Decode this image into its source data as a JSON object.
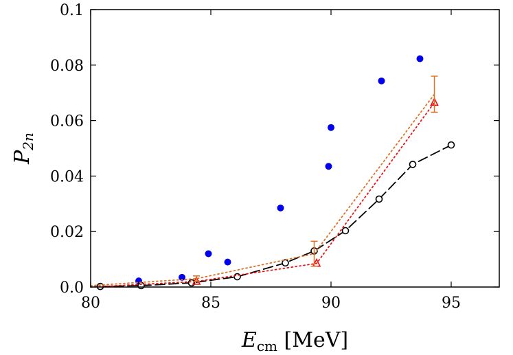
{
  "chart_data": {
    "type": "scatter",
    "xlabel": {
      "main": "E",
      "sub": "cm",
      "unit": " [MeV]"
    },
    "ylabel": {
      "main": "P",
      "sub": "2n"
    },
    "xlim": [
      80,
      97
    ],
    "ylim": [
      0,
      0.1
    ],
    "x_ticks": [
      80,
      85,
      90,
      95
    ],
    "x_tick_labels": [
      "80",
      "85",
      "90",
      "95"
    ],
    "y_ticks": [
      0,
      0.02,
      0.04,
      0.06,
      0.08,
      0.1
    ],
    "y_tick_labels": [
      "0.0",
      "0.02",
      "0.04",
      "0.06",
      "0.08",
      "0.1"
    ],
    "grid": false,
    "series": [
      {
        "marker": "filled-circle",
        "color": "#0000ee",
        "points": [
          {
            "x": 82.0,
            "y": 0.0022
          },
          {
            "x": 83.8,
            "y": 0.0035
          },
          {
            "x": 84.9,
            "y": 0.012
          },
          {
            "x": 85.7,
            "y": 0.009
          },
          {
            "x": 87.9,
            "y": 0.0285
          },
          {
            "x": 89.9,
            "y": 0.0435
          },
          {
            "x": 90.0,
            "y": 0.0575
          },
          {
            "x": 92.1,
            "y": 0.0743
          },
          {
            "x": 93.7,
            "y": 0.0823
          }
        ]
      },
      {
        "marker": "open-circle",
        "line": "dashed",
        "color": "#000000",
        "points": [
          {
            "x": 80.4,
            "y": 0.0002
          },
          {
            "x": 82.1,
            "y": 0.0005
          },
          {
            "x": 84.2,
            "y": 0.0015
          },
          {
            "x": 86.1,
            "y": 0.0037
          },
          {
            "x": 88.1,
            "y": 0.0087
          },
          {
            "x": 89.3,
            "y": 0.013
          },
          {
            "x": 90.6,
            "y": 0.0203
          },
          {
            "x": 92.0,
            "y": 0.0317
          },
          {
            "x": 93.4,
            "y": 0.0442
          },
          {
            "x": 95.0,
            "y": 0.0512
          }
        ]
      },
      {
        "marker": "open-triangle",
        "line": "dotted",
        "color": "#ee1111",
        "points": [
          {
            "x": 80.0,
            "y": 0.0
          },
          {
            "x": 84.4,
            "y": 0.002
          },
          {
            "x": 89.4,
            "y": 0.0085
          },
          {
            "x": 94.3,
            "y": 0.0665
          }
        ]
      },
      {
        "marker": "errorbar",
        "line": "dotted",
        "color": "#e07020",
        "points": [
          {
            "x": 80.0,
            "y": 0.0005
          },
          {
            "x": 84.4,
            "y": 0.003,
            "yerr": 0.001
          },
          {
            "x": 89.3,
            "y": 0.012,
            "yerr": 0.0045
          },
          {
            "x": 94.3,
            "y": 0.0695,
            "yerr": 0.0065
          }
        ]
      }
    ]
  }
}
